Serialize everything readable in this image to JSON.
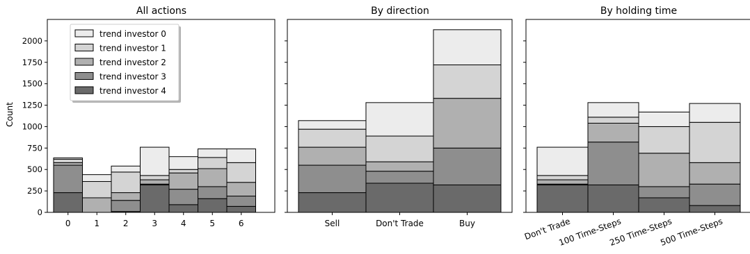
{
  "figure": {
    "ylabel": "Count",
    "series_names": [
      "trend investor 0",
      "trend investor 1",
      "trend investor 2",
      "trend investor 3",
      "trend investor 4"
    ],
    "colors": [
      "#ececec",
      "#d4d4d4",
      "#b0b0b0",
      "#8e8e8e",
      "#6a6a6a"
    ],
    "y_ticks": [
      0,
      250,
      500,
      750,
      1000,
      1250,
      1500,
      1750,
      2000
    ],
    "ylim": [
      0,
      2250
    ]
  },
  "chart_data": [
    {
      "type": "bar",
      "stacked": true,
      "title": "All actions",
      "ylabel": "Count",
      "legend": "top-left",
      "categories": [
        "0",
        "1",
        "2",
        "3",
        "4",
        "5",
        "6"
      ],
      "series": [
        {
          "name": "trend investor 0",
          "values": [
            15,
            80,
            70,
            330,
            150,
            100,
            160
          ]
        },
        {
          "name": "trend investor 1",
          "values": [
            40,
            190,
            240,
            50,
            40,
            130,
            230
          ]
        },
        {
          "name": "trend investor 2",
          "values": [
            30,
            170,
            90,
            50,
            190,
            210,
            160
          ]
        },
        {
          "name": "trend investor 3",
          "values": [
            320,
            0,
            130,
            10,
            180,
            140,
            120
          ]
        },
        {
          "name": "trend investor 4",
          "values": [
            230,
            0,
            10,
            320,
            90,
            160,
            70
          ]
        }
      ],
      "ylim": [
        0,
        2250
      ]
    },
    {
      "type": "bar",
      "stacked": true,
      "title": "By direction",
      "categories": [
        "Sell",
        "Don't Trade",
        "Buy"
      ],
      "series": [
        {
          "name": "trend investor 0",
          "values": [
            100,
            390,
            410
          ]
        },
        {
          "name": "trend investor 1",
          "values": [
            210,
            300,
            390
          ]
        },
        {
          "name": "trend investor 2",
          "values": [
            210,
            110,
            580
          ]
        },
        {
          "name": "trend investor 3",
          "values": [
            320,
            140,
            430
          ]
        },
        {
          "name": "trend investor 4",
          "values": [
            230,
            340,
            320
          ]
        }
      ],
      "ylim": [
        0,
        2250
      ]
    },
    {
      "type": "bar",
      "stacked": true,
      "title": "By holding time",
      "categories": [
        "Don't Trade",
        "100 Time-Steps",
        "250 Time-Steps",
        "500 Time-Steps"
      ],
      "series": [
        {
          "name": "trend investor 0",
          "values": [
            330,
            170,
            170,
            220
          ]
        },
        {
          "name": "trend investor 1",
          "values": [
            50,
            70,
            310,
            470
          ]
        },
        {
          "name": "trend investor 2",
          "values": [
            50,
            220,
            390,
            250
          ]
        },
        {
          "name": "trend investor 3",
          "values": [
            10,
            500,
            130,
            250
          ]
        },
        {
          "name": "trend investor 4",
          "values": [
            320,
            320,
            170,
            80
          ]
        }
      ],
      "ylim": [
        0,
        2250
      ]
    }
  ]
}
